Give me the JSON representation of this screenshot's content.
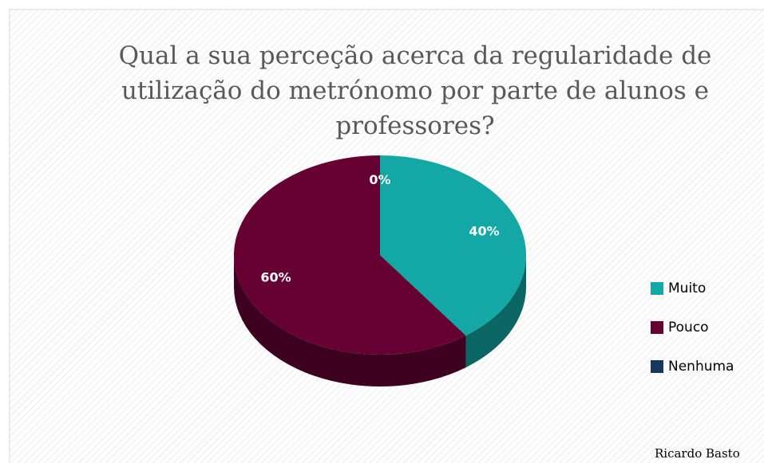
{
  "chart_data": {
    "type": "pie",
    "title": "Qual a sua perceção acerca da regularidade de utilização do metrónomo por parte de alunos e professores?",
    "categories": [
      "Muito",
      "Pouco",
      "Nenhuma"
    ],
    "values": [
      40,
      60,
      0
    ],
    "value_labels": [
      "40%",
      "60%",
      "0%"
    ],
    "colors": [
      "#13a8a5",
      "#660033",
      "#17375e"
    ],
    "legend": "right",
    "annotation": "Ricardo Basto"
  }
}
